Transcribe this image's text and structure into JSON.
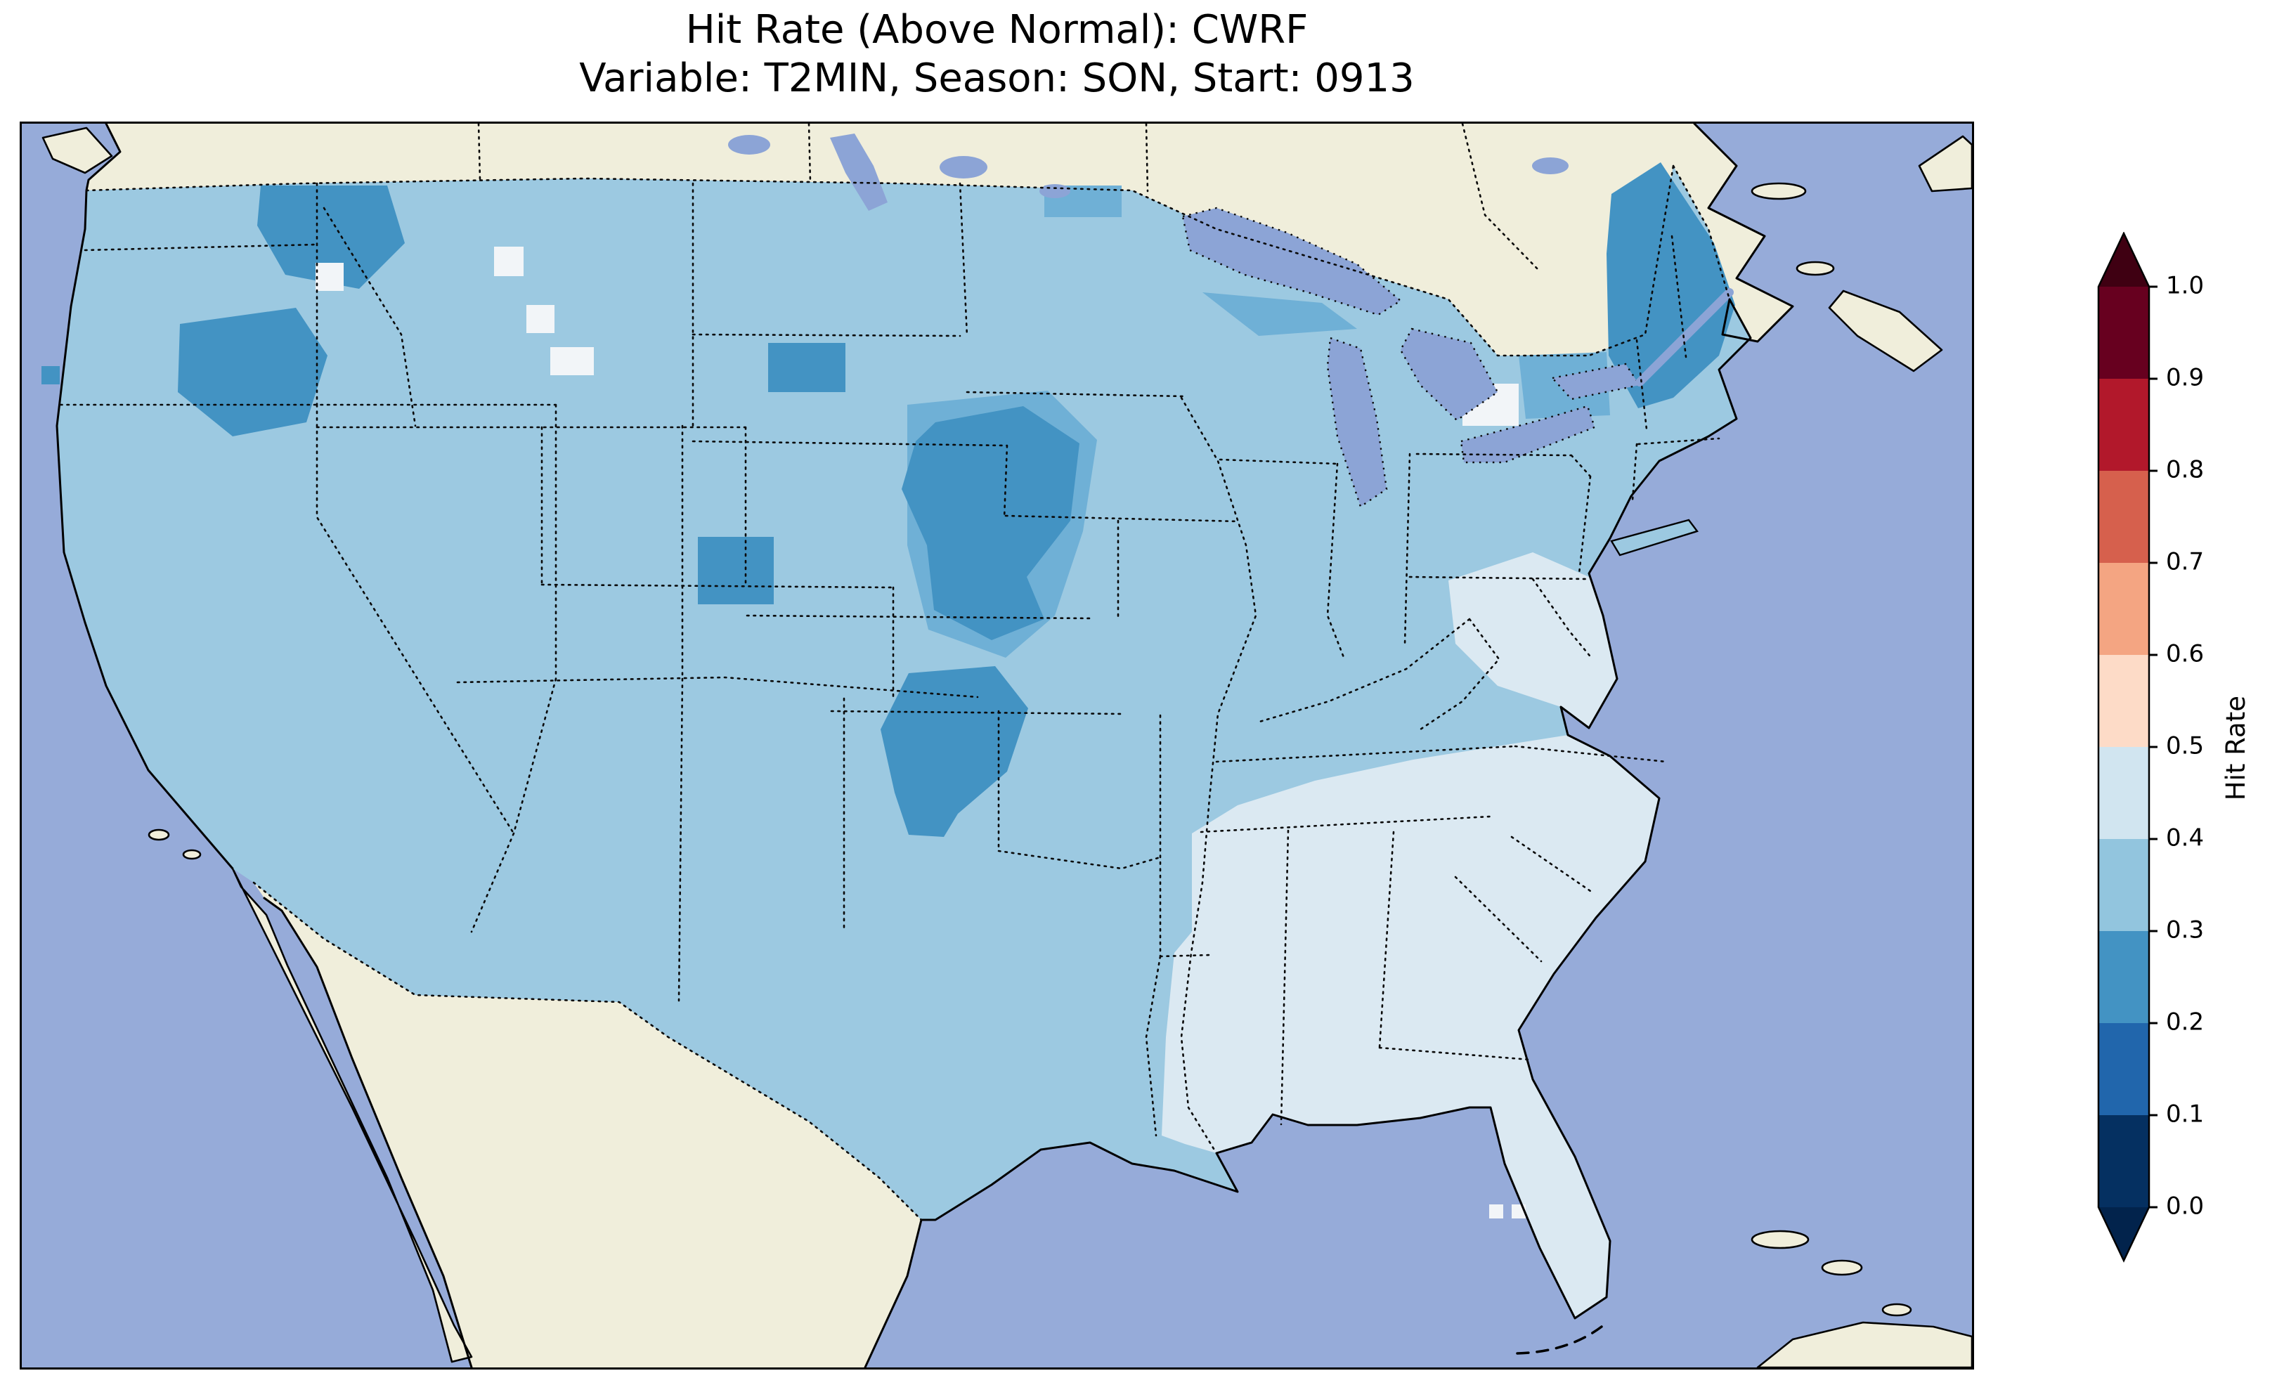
{
  "figure": {
    "title_line1": "Hit Rate (Above Normal): CWRF",
    "title_line2": "Variable: T2MIN, Season: SON, Start: 0913"
  },
  "palette": {
    "ocean": "#96abd9",
    "land": "#f0eedb",
    "lake": "#8ca4d6",
    "us_base": "#9cc9e1",
    "us_pale": "#dbe9f2",
    "us_dark": "#4393c3",
    "us_med": "#6fb0d6",
    "us_white": "#f2f5f8"
  },
  "chart_data": {
    "type": "heatmap",
    "title": "Hit Rate (Above Normal): CWRF",
    "subtitle": "Variable: T2MIN, Season: SON, Start: 0913",
    "metric": "Hit Rate (Above Normal)",
    "model": "CWRF",
    "variable": "T2MIN",
    "season": "SON",
    "start": "0913",
    "colorbar": {
      "label": "Hit Rate",
      "orientation": "vertical",
      "range": [
        0.0,
        1.0
      ],
      "tick_labels": [
        "1.0",
        "0.9",
        "0.8",
        "0.7",
        "0.6",
        "0.5",
        "0.4",
        "0.3",
        "0.2",
        "0.1",
        "0.0"
      ],
      "bin_colors_top_to_bottom": [
        "#67001f",
        "#b2182b",
        "#d6604d",
        "#f4a582",
        "#fddbc7",
        "#d1e5f0",
        "#92c5de",
        "#4393c3",
        "#2166ac",
        "#053061"
      ],
      "extend_color_top": "#3f0012",
      "extend_color_bottom": "#02234c",
      "extend": "both"
    },
    "map_extent": "Contiguous United States with surrounding Canada, Mexico and oceans; data masked outside the US",
    "regions": [
      {
        "area": "Most of the western and central US",
        "hit_rate_bin": "0.3-0.4"
      },
      {
        "area": "Southeast US (Gulf Coast, Florida, Georgia, Carolinas, Virginia, Tennessee Valley)",
        "hit_rate_bin": "0.4-0.5"
      },
      {
        "area": "Eastern Washington",
        "hit_rate_bin": "0.2-0.3"
      },
      {
        "area": "Central Idaho",
        "hit_rate_bin": "0.2-0.3"
      },
      {
        "area": "Central South Dakota",
        "hit_rate_bin": "0.2-0.3"
      },
      {
        "area": "Central Nebraska and Kansas",
        "hit_rate_bin": "0.2-0.3"
      },
      {
        "area": "Western Oklahoma and adjacent north Texas",
        "hit_rate_bin": "0.2-0.3"
      },
      {
        "area": "Northern New England (Maine, Vermont, New Hampshire)",
        "hit_rate_bin": "0.2-0.3"
      },
      {
        "area": "Scattered cells in Montana, Wyoming, mid-Atlantic and off the Florida coast",
        "hit_rate_bin": "0.5-0.6"
      }
    ]
  }
}
